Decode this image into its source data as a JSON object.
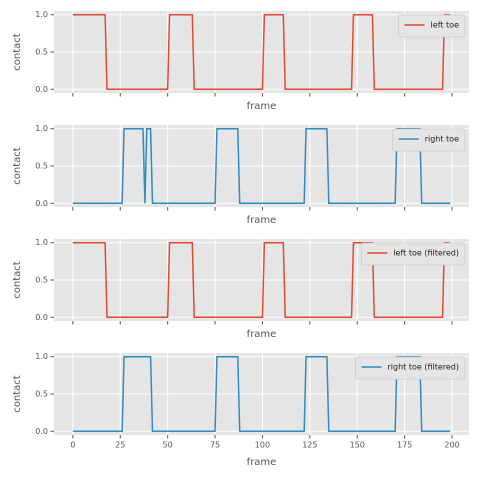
{
  "chart_data": [
    {
      "type": "line",
      "xlabel": "frame",
      "ylabel": "contact",
      "x": [
        0,
        17,
        18,
        50,
        51,
        63,
        64,
        100,
        101,
        111,
        112,
        147,
        148,
        158,
        159,
        195,
        196,
        199
      ],
      "series": [
        {
          "name": "left toe",
          "color": "#E24A33",
          "values": [
            1,
            1,
            0,
            0,
            1,
            1,
            0,
            0,
            1,
            1,
            0,
            0,
            1,
            1,
            0,
            0,
            1,
            1
          ]
        }
      ],
      "xlim": [
        -9.95,
        208.95
      ],
      "ylim": [
        -0.05,
        1.05
      ],
      "xticks": [
        0,
        25,
        50,
        75,
        100,
        125,
        150,
        175,
        200
      ],
      "show_xticklabels": false,
      "yticks": [
        {
          "value": 0,
          "label": "0.0"
        },
        {
          "value": 0.5,
          "label": "0.5"
        },
        {
          "value": 1,
          "label": "1.0"
        }
      ],
      "grid": true,
      "legend": "upper right"
    },
    {
      "type": "line",
      "xlabel": "frame",
      "ylabel": "contact",
      "x": [
        0,
        26,
        27,
        37,
        38,
        39,
        41,
        42,
        75,
        76,
        87,
        88,
        122,
        123,
        134,
        135,
        170,
        171,
        183,
        184,
        199
      ],
      "series": [
        {
          "name": "right toe",
          "color": "#348ABD",
          "values": [
            0,
            0,
            1,
            1,
            0,
            1,
            1,
            0,
            0,
            1,
            1,
            0,
            0,
            1,
            1,
            0,
            0,
            1,
            1,
            0,
            0
          ]
        }
      ],
      "xlim": [
        -9.95,
        208.95
      ],
      "ylim": [
        -0.05,
        1.05
      ],
      "xticks": [
        0,
        25,
        50,
        75,
        100,
        125,
        150,
        175,
        200
      ],
      "show_xticklabels": false,
      "yticks": [
        {
          "value": 0,
          "label": "0.0"
        },
        {
          "value": 0.5,
          "label": "0.5"
        },
        {
          "value": 1,
          "label": "1.0"
        }
      ],
      "grid": true,
      "legend": "upper right"
    },
    {
      "type": "line",
      "xlabel": "frame",
      "ylabel": "contact",
      "x": [
        0,
        17,
        18,
        50,
        51,
        63,
        64,
        100,
        101,
        111,
        112,
        147,
        148,
        158,
        159,
        195,
        196,
        199
      ],
      "series": [
        {
          "name": "left toe (filtered)",
          "color": "#E24A33",
          "values": [
            1,
            1,
            0,
            0,
            1,
            1,
            0,
            0,
            1,
            1,
            0,
            0,
            1,
            1,
            0,
            0,
            1,
            1
          ]
        }
      ],
      "xlim": [
        -9.95,
        208.95
      ],
      "ylim": [
        -0.05,
        1.05
      ],
      "xticks": [
        0,
        25,
        50,
        75,
        100,
        125,
        150,
        175,
        200
      ],
      "show_xticklabels": false,
      "yticks": [
        {
          "value": 0,
          "label": "0.0"
        },
        {
          "value": 0.5,
          "label": "0.5"
        },
        {
          "value": 1,
          "label": "1.0"
        }
      ],
      "grid": true,
      "legend": "upper right"
    },
    {
      "type": "line",
      "xlabel": "frame",
      "ylabel": "contact",
      "x": [
        0,
        26,
        27,
        41,
        42,
        75,
        76,
        87,
        88,
        122,
        123,
        134,
        135,
        170,
        171,
        183,
        184,
        199
      ],
      "series": [
        {
          "name": "right toe (filtered)",
          "color": "#348ABD",
          "values": [
            0,
            0,
            1,
            1,
            0,
            0,
            1,
            1,
            0,
            0,
            1,
            1,
            0,
            0,
            1,
            1,
            0,
            0
          ]
        }
      ],
      "xlim": [
        -9.95,
        208.95
      ],
      "ylim": [
        -0.05,
        1.05
      ],
      "xticks": [
        0,
        25,
        50,
        75,
        100,
        125,
        150,
        175,
        200
      ],
      "show_xticklabels": true,
      "yticks": [
        {
          "value": 0,
          "label": "0.0"
        },
        {
          "value": 0.5,
          "label": "0.5"
        },
        {
          "value": 1,
          "label": "1.0"
        }
      ],
      "grid": true,
      "legend": "upper right"
    }
  ]
}
